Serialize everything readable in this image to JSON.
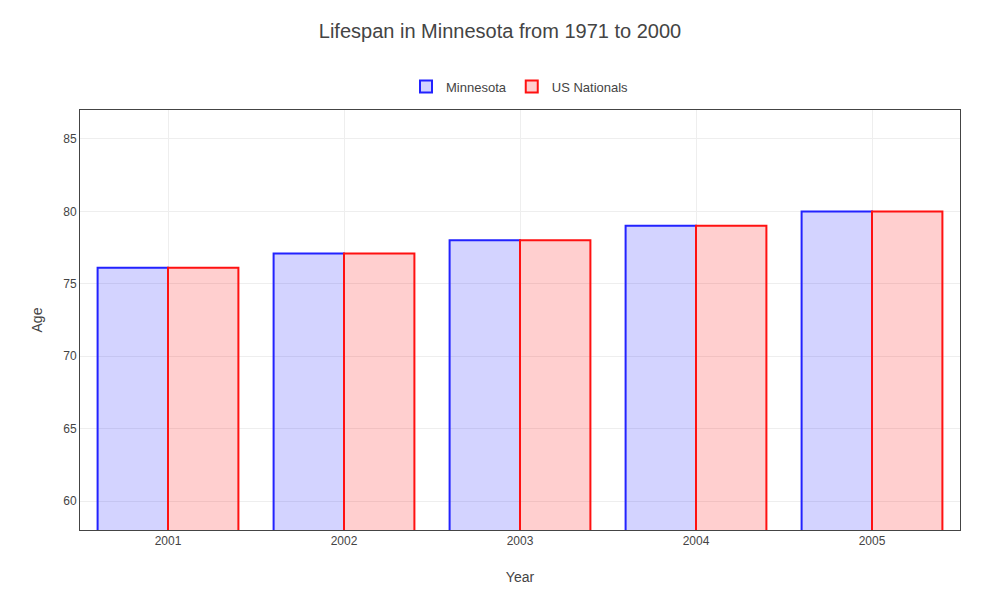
{
  "chart_data": {
    "type": "bar",
    "title": "Lifespan in Minnesota from 1971 to 2000",
    "x_label": "Year",
    "y_label": "Age",
    "categories": [
      "2001",
      "2002",
      "2003",
      "2004",
      "2005"
    ],
    "series": [
      {
        "name": "Minnesota",
        "color": "#2222ff",
        "values": [
          76.1,
          77.1,
          78.0,
          79.0,
          80.0
        ]
      },
      {
        "name": "US Nationals",
        "color": "#ff1111",
        "values": [
          76.1,
          77.1,
          78.0,
          79.0,
          80.0
        ]
      }
    ],
    "ylim": [
      58,
      87
    ],
    "yticks": [
      60,
      65,
      70,
      75,
      80,
      85
    ],
    "grid": true,
    "legend": "upper center"
  }
}
